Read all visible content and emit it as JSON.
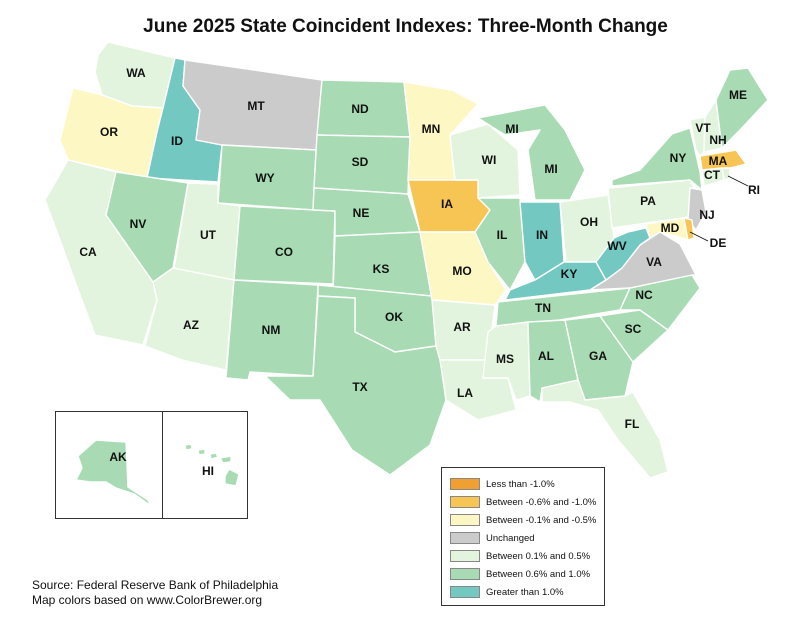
{
  "title": "June 2025 State Coincident Indexes: Three-Month Change",
  "source_line1": "Source: Federal Reserve Bank of Philadelphia",
  "source_line2": "Map colors based on www.ColorBrewer.org",
  "categories": [
    {
      "key": "lt_neg1",
      "label": "Less than -1.0%",
      "color": "#f0a030"
    },
    {
      "key": "neg06_neg10",
      "label": "Between -0.6% and -1.0%",
      "color": "#f6c553"
    },
    {
      "key": "neg01_neg05",
      "label": "Between -0.1% and -0.5%",
      "color": "#fdf7c3"
    },
    {
      "key": "unchanged",
      "label": "Unchanged",
      "color": "#cbcbcb"
    },
    {
      "key": "pos01_05",
      "label": "Between 0.1% and 0.5%",
      "color": "#e3f4de"
    },
    {
      "key": "pos06_10",
      "label": "Between 0.6% and 1.0%",
      "color": "#a8dbb3"
    },
    {
      "key": "gt1",
      "label": "Greater than 1.0%",
      "color": "#73c8c2"
    }
  ],
  "states": [
    {
      "abbr": "WA",
      "category": "pos01_05"
    },
    {
      "abbr": "OR",
      "category": "neg01_neg05"
    },
    {
      "abbr": "CA",
      "category": "pos01_05"
    },
    {
      "abbr": "ID",
      "category": "gt1"
    },
    {
      "abbr": "NV",
      "category": "pos06_10"
    },
    {
      "abbr": "MT",
      "category": "unchanged"
    },
    {
      "abbr": "WY",
      "category": "pos06_10"
    },
    {
      "abbr": "UT",
      "category": "pos01_05"
    },
    {
      "abbr": "AZ",
      "category": "pos01_05"
    },
    {
      "abbr": "CO",
      "category": "pos06_10"
    },
    {
      "abbr": "NM",
      "category": "pos06_10"
    },
    {
      "abbr": "ND",
      "category": "pos06_10"
    },
    {
      "abbr": "SD",
      "category": "pos06_10"
    },
    {
      "abbr": "NE",
      "category": "pos06_10"
    },
    {
      "abbr": "KS",
      "category": "pos06_10"
    },
    {
      "abbr": "OK",
      "category": "pos06_10"
    },
    {
      "abbr": "TX",
      "category": "pos06_10"
    },
    {
      "abbr": "MN",
      "category": "neg01_neg05"
    },
    {
      "abbr": "IA",
      "category": "neg06_neg10"
    },
    {
      "abbr": "MO",
      "category": "neg01_neg05"
    },
    {
      "abbr": "AR",
      "category": "pos01_05"
    },
    {
      "abbr": "LA",
      "category": "pos01_05"
    },
    {
      "abbr": "WI",
      "category": "pos01_05"
    },
    {
      "abbr": "IL",
      "category": "pos06_10"
    },
    {
      "abbr": "MI",
      "category": "pos06_10"
    },
    {
      "abbr": "IN",
      "category": "gt1"
    },
    {
      "abbr": "OH",
      "category": "pos01_05"
    },
    {
      "abbr": "KY",
      "category": "gt1"
    },
    {
      "abbr": "TN",
      "category": "pos06_10"
    },
    {
      "abbr": "MS",
      "category": "pos01_05"
    },
    {
      "abbr": "AL",
      "category": "pos06_10"
    },
    {
      "abbr": "GA",
      "category": "pos06_10"
    },
    {
      "abbr": "FL",
      "category": "pos01_05"
    },
    {
      "abbr": "SC",
      "category": "pos06_10"
    },
    {
      "abbr": "NC",
      "category": "pos06_10"
    },
    {
      "abbr": "VA",
      "category": "unchanged"
    },
    {
      "abbr": "WV",
      "category": "gt1"
    },
    {
      "abbr": "PA",
      "category": "pos01_05"
    },
    {
      "abbr": "NY",
      "category": "pos06_10"
    },
    {
      "abbr": "NJ",
      "category": "unchanged"
    },
    {
      "abbr": "DE",
      "category": "neg06_neg10"
    },
    {
      "abbr": "MD",
      "category": "neg01_neg05"
    },
    {
      "abbr": "CT",
      "category": "pos01_05"
    },
    {
      "abbr": "RI",
      "category": "pos01_05"
    },
    {
      "abbr": "MA",
      "category": "neg06_neg10"
    },
    {
      "abbr": "VT",
      "category": "pos01_05"
    },
    {
      "abbr": "NH",
      "category": "pos01_05"
    },
    {
      "abbr": "ME",
      "category": "pos06_10"
    },
    {
      "abbr": "AK",
      "category": "pos06_10"
    },
    {
      "abbr": "HI",
      "category": "pos06_10"
    }
  ]
}
